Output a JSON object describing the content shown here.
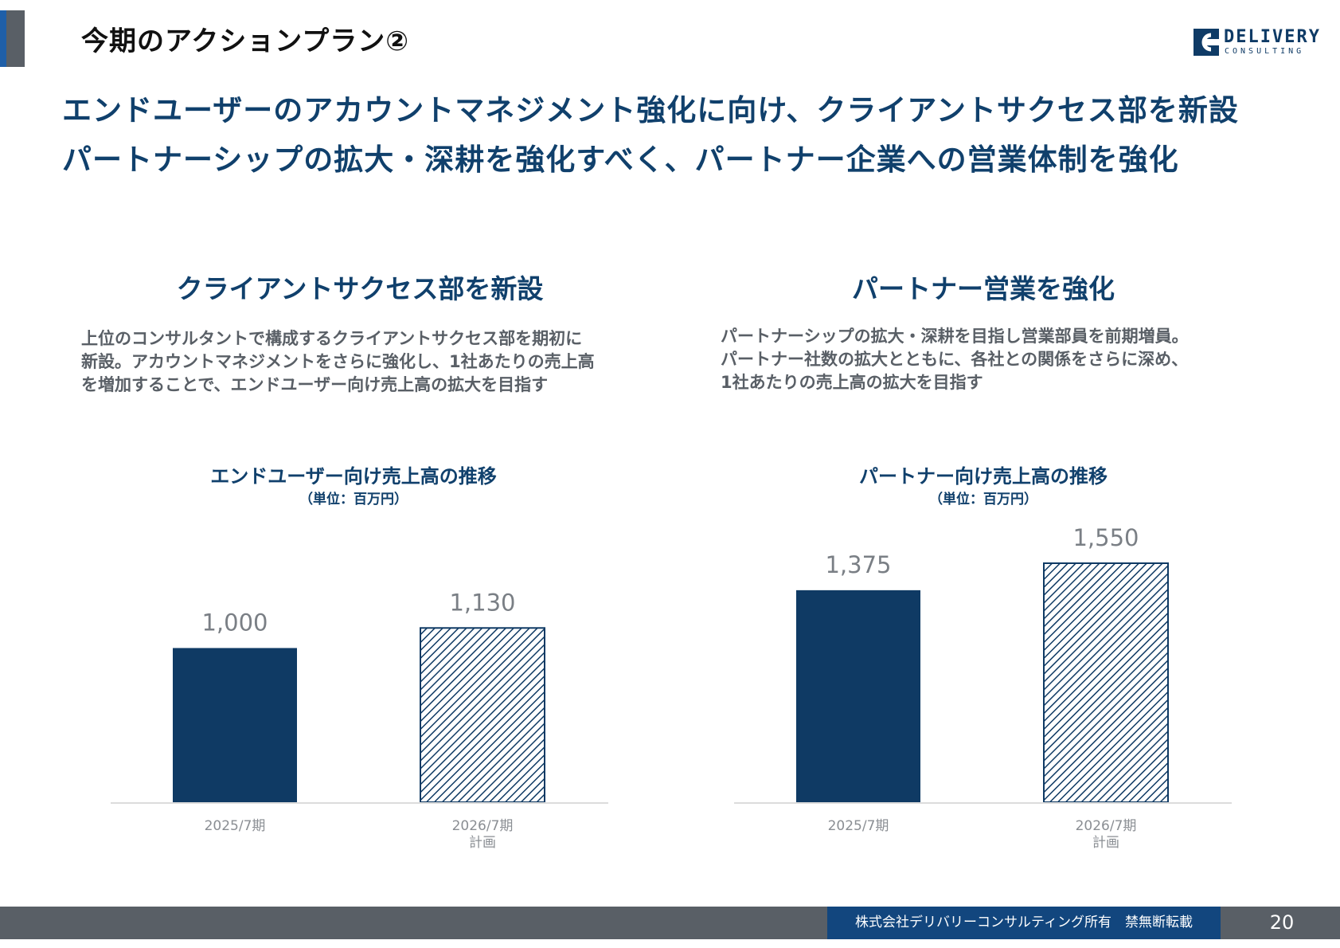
{
  "header": {
    "title": "今期のアクションプラン②",
    "logo_word1": "DELIVERY",
    "logo_word2": "CONSULTING"
  },
  "headline": {
    "line1": "エンドユーザーのアカウントマネジメント強化に向け、クライアントサクセス部を新設",
    "line2": "パートナーシップの拡大・深耕を強化すべく、パートナー企業への営業体制を強化"
  },
  "left_panel": {
    "title": "クライアントサクセス部を新設",
    "desc": [
      "上位のコンサルタントで構成するクライアントサクセス部を期初に",
      "新設。アカウントマネジメントをさらに強化し、1社あたりの売上高",
      "を増加することで、エンドユーザー向け売上高の拡大を目指す"
    ]
  },
  "right_panel": {
    "title": "パートナー営業を強化",
    "desc": [
      "パートナーシップの拡大・深耕を目指し営業部員を前期増員。",
      "パートナー社数の拡大とともに、各社との関係をさらに深め、",
      "1社あたりの売上高の拡大を目指す"
    ]
  },
  "colors": {
    "navy": "#0f3a64",
    "label_gray": "#7a7f85",
    "axis_gray": "#dcdcdc"
  },
  "chart_data": [
    {
      "type": "bar",
      "title": "エンドユーザー向け売上高の推移",
      "unit": "（単位：百万円）",
      "categories": [
        [
          "2025/7期"
        ],
        [
          "2026/7期",
          "計画"
        ]
      ],
      "values": [
        1000,
        1130
      ],
      "labels": [
        "1,000",
        "1,130"
      ],
      "styles": [
        "solid",
        "hatched"
      ],
      "ylim": [
        0,
        1550
      ]
    },
    {
      "type": "bar",
      "title": "パートナー向け売上高の推移",
      "unit": "（単位：百万円）",
      "categories": [
        [
          "2025/7期"
        ],
        [
          "2026/7期",
          "計画"
        ]
      ],
      "values": [
        1375,
        1550
      ],
      "labels": [
        "1,375",
        "1,550"
      ],
      "styles": [
        "solid",
        "hatched"
      ],
      "ylim": [
        0,
        1550
      ]
    }
  ],
  "footer": {
    "label": "株式会社デリバリーコンサルティング所有　禁無断転載",
    "page": "20"
  }
}
